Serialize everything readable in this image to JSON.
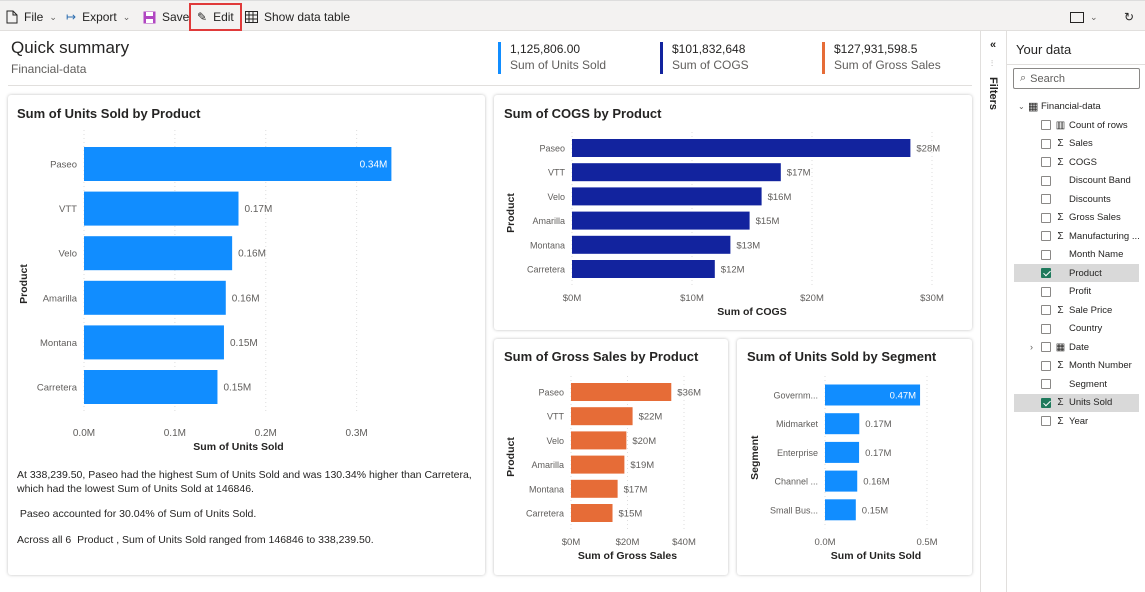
{
  "toolbar": {
    "file": "File",
    "export": "Export",
    "save": "Save",
    "edit": "Edit",
    "show_data_table": "Show data table"
  },
  "header": {
    "title": "Quick summary",
    "subtitle": "Financial-data"
  },
  "kpis": [
    {
      "value": "1,125,806.00",
      "label": "Sum of Units Sold",
      "color": "#118DFF"
    },
    {
      "value": "$101,832,648",
      "label": "Sum of COGS",
      "color": "#12239E"
    },
    {
      "value": "$127,931,598.5",
      "label": "Sum of Gross Sales",
      "color": "#E66C37"
    }
  ],
  "narrative": [
    "At 338,239.50,  Paseo had the highest Sum of Units Sold and was 130.34% higher than  Carretera, which had the lowest Sum of Units Sold at 146846.",
    " Paseo accounted for 30.04% of Sum of Units Sold.",
    "Across all 6  Product , Sum of Units Sold ranged from 146846 to 338,239.50."
  ],
  "chart_data": [
    {
      "type": "bar",
      "orientation": "horizontal",
      "title": "Sum of Units Sold by Product",
      "xlabel": "Sum of Units Sold",
      "ylabel": "Product",
      "color": "#118DFF",
      "categories": [
        "Paseo",
        "VTT",
        "Velo",
        "Amarilla",
        "Montana",
        "Carretera"
      ],
      "values": [
        338239.5,
        170000,
        163000,
        156000,
        154000,
        146846
      ],
      "data_labels": [
        "0.34M",
        "0.17M",
        "0.16M",
        "0.16M",
        "0.15M",
        "0.15M"
      ],
      "xticks": [
        0,
        100000,
        200000,
        300000
      ],
      "xtick_labels": [
        "0.0M",
        "0.1M",
        "0.2M",
        "0.3M"
      ],
      "xlim": [
        0,
        340000
      ],
      "grid": true
    },
    {
      "type": "bar",
      "orientation": "horizontal",
      "title": "Sum of COGS by Product",
      "xlabel": "Sum of COGS",
      "ylabel": "Product",
      "color": "#12239E",
      "categories": [
        "Paseo",
        "VTT",
        "Velo",
        "Amarilla",
        "Montana",
        "Carretera"
      ],
      "values": [
        28.2,
        17.4,
        15.8,
        14.8,
        13.2,
        11.9
      ],
      "data_labels": [
        "$28M",
        "$17M",
        "$16M",
        "$15M",
        "$13M",
        "$12M"
      ],
      "xticks": [
        0,
        10,
        20,
        30
      ],
      "xtick_labels": [
        "$0M",
        "$10M",
        "$20M",
        "$30M"
      ],
      "xlim": [
        0,
        30
      ],
      "grid": true
    },
    {
      "type": "bar",
      "orientation": "horizontal",
      "title": "Sum of Gross Sales by Product",
      "xlabel": "Sum of Gross Sales",
      "ylabel": "Product",
      "color": "#E66C37",
      "categories": [
        "Paseo",
        "VTT",
        "Velo",
        "Amarilla",
        "Montana",
        "Carretera"
      ],
      "values": [
        35.5,
        21.8,
        19.6,
        18.9,
        16.5,
        14.7
      ],
      "data_labels": [
        "$36M",
        "$22M",
        "$20M",
        "$19M",
        "$17M",
        "$15M"
      ],
      "xticks": [
        0,
        20,
        40
      ],
      "xtick_labels": [
        "$0M",
        "$20M",
        "$40M"
      ],
      "xlim": [
        0,
        40
      ],
      "grid": true
    },
    {
      "type": "bar",
      "orientation": "horizontal",
      "title": "Sum of Units Sold by Segment",
      "xlabel": "Sum of Units Sold",
      "ylabel": "Segment",
      "color": "#118DFF",
      "categories": [
        "Governm...",
        "Midmarket",
        "Enterprise",
        "Channel ...",
        "Small Bus..."
      ],
      "values": [
        466000,
        168000,
        167000,
        158000,
        151000
      ],
      "data_labels": [
        "0.47M",
        "0.17M",
        "0.17M",
        "0.16M",
        "0.15M"
      ],
      "xticks": [
        0,
        500000
      ],
      "xtick_labels": [
        "0.0M",
        "0.5M"
      ],
      "xlim": [
        0,
        500000
      ],
      "grid": true
    }
  ],
  "filters": {
    "label": "Filters"
  },
  "pane": {
    "title": "Your data",
    "search_placeholder": "Search",
    "table": "Financial-data",
    "fields": [
      {
        "name": "Count of rows",
        "icon": "calculator",
        "checked": false
      },
      {
        "name": "Sales",
        "icon": "sigma",
        "checked": false
      },
      {
        "name": "COGS",
        "icon": "sigma",
        "checked": false
      },
      {
        "name": "Discount Band",
        "icon": "",
        "checked": false
      },
      {
        "name": "Discounts",
        "icon": "",
        "checked": false
      },
      {
        "name": "Gross Sales",
        "icon": "sigma",
        "checked": false
      },
      {
        "name": "Manufacturing ...",
        "icon": "sigma",
        "checked": false
      },
      {
        "name": "Month Name",
        "icon": "",
        "checked": false
      },
      {
        "name": "Product",
        "icon": "",
        "checked": true
      },
      {
        "name": "Profit",
        "icon": "",
        "checked": false
      },
      {
        "name": "Sale Price",
        "icon": "sigma",
        "checked": false
      },
      {
        "name": "Country",
        "icon": "",
        "checked": false
      },
      {
        "name": "Date",
        "icon": "calendar",
        "checked": false,
        "expandable": true
      },
      {
        "name": "Month Number",
        "icon": "sigma",
        "checked": false
      },
      {
        "name": "Segment",
        "icon": "",
        "checked": false
      },
      {
        "name": "Units Sold",
        "icon": "sigma",
        "checked": true
      },
      {
        "name": "Year",
        "icon": "sigma",
        "checked": false
      }
    ]
  }
}
